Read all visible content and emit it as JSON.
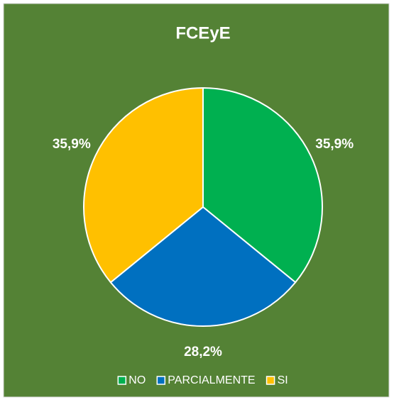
{
  "chart_data": {
    "type": "pie",
    "title": "FCEyE",
    "categories": [
      "NO",
      "PARCIALMENTE",
      "SI"
    ],
    "values": [
      35.9,
      28.2,
      35.9
    ],
    "value_labels": [
      "35,9%",
      "28,2%",
      "35,9%"
    ],
    "colors": [
      "#00b050",
      "#0070c0",
      "#ffc000"
    ],
    "legend": "bottom"
  }
}
